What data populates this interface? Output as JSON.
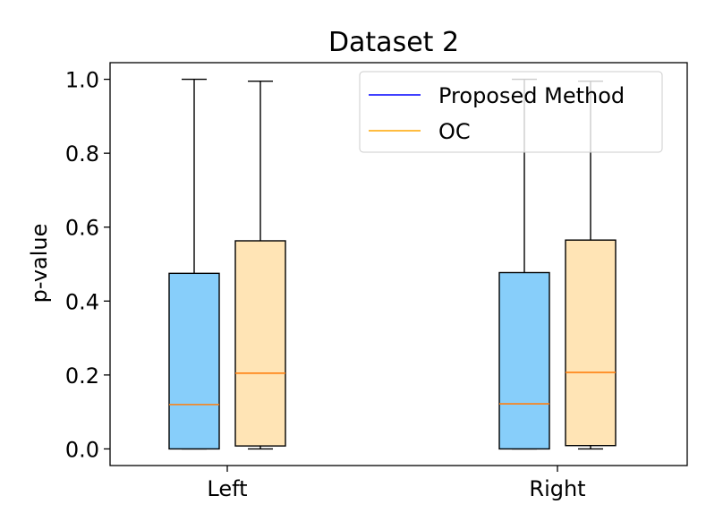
{
  "chart_data": {
    "type": "box",
    "title": "Dataset 2",
    "xlabel": "",
    "ylabel": "p-value",
    "ylim": [
      -0.045,
      1.045
    ],
    "yticks": [
      0.0,
      0.2,
      0.4,
      0.6,
      0.8,
      1.0
    ],
    "ytick_labels": [
      "0.0",
      "0.2",
      "0.4",
      "0.6",
      "0.8",
      "1.0"
    ],
    "categories": [
      "Left",
      "Right"
    ],
    "series": [
      {
        "name": "Proposed Method",
        "legend_color": "#0000ff",
        "fill": "#87cefa",
        "median_color": "#ff7f0e",
        "boxes": [
          {
            "whisker_low": 0.0,
            "q1": 0.0,
            "median": 0.12,
            "q3": 0.475,
            "whisker_high": 1.0
          },
          {
            "whisker_low": 0.0,
            "q1": 0.0,
            "median": 0.122,
            "q3": 0.477,
            "whisker_high": 1.0
          }
        ]
      },
      {
        "name": "OC",
        "legend_color": "#ffa500",
        "fill": "#ffe4b5",
        "median_color": "#ff7f0e",
        "boxes": [
          {
            "whisker_low": 0.0,
            "q1": 0.008,
            "median": 0.205,
            "q3": 0.563,
            "whisker_high": 0.995
          },
          {
            "whisker_low": 0.0,
            "q1": 0.009,
            "median": 0.207,
            "q3": 0.565,
            "whisker_high": 0.995
          }
        ]
      }
    ],
    "legend_position": "top-right",
    "grid": false
  }
}
